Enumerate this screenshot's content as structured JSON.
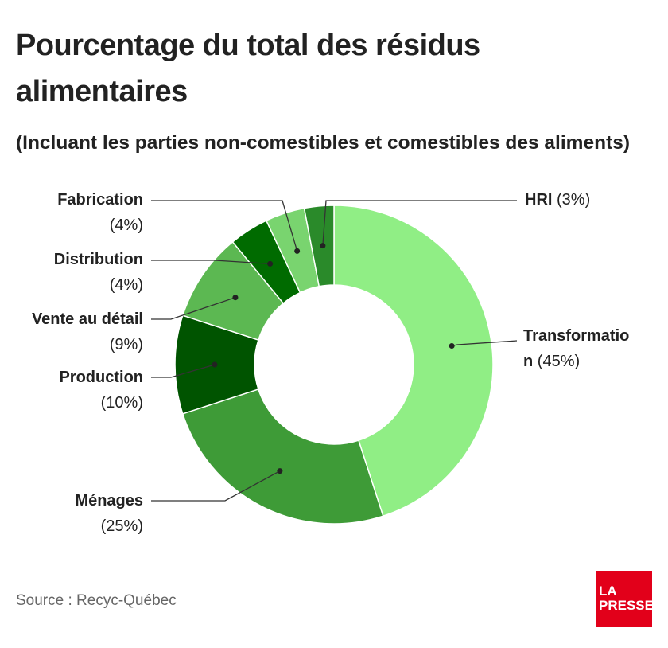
{
  "title": "Pourcentage du total des résidus alimentaires",
  "subtitle": "(Incluant les parties non-comestibles et comestibles des aliments)",
  "source": "Source : Recyc-Québec",
  "logo": {
    "line1": "LA",
    "line2": "PRESSE",
    "color": "#e2001a"
  },
  "chart_data": {
    "type": "pie",
    "donut": true,
    "title": "Pourcentage du total des résidus alimentaires",
    "subtitle": "(Incluant les parties non-comestibles et comestibles des aliments)",
    "slices": [
      {
        "label": "Transformation",
        "display_name": "Transformatio n",
        "display_pct": "(45%)",
        "value": 45,
        "color": "#90ee85"
      },
      {
        "label": "Ménages",
        "display_name": "Ménages",
        "display_pct": "(25%)",
        "value": 25,
        "color": "#3e9b37"
      },
      {
        "label": "Production",
        "display_name": "Production",
        "display_pct": "(10%)",
        "value": 10,
        "color": "#005400"
      },
      {
        "label": "Vente au détail",
        "display_name": "Vente au détail",
        "display_pct": "(9%)",
        "value": 9,
        "color": "#5cb852"
      },
      {
        "label": "Distribution",
        "display_name": "Distribution",
        "display_pct": "(4%)",
        "value": 4,
        "color": "#006b00"
      },
      {
        "label": "Fabrication",
        "display_name": "Fabrication",
        "display_pct": "(4%)",
        "value": 4,
        "color": "#79d46f"
      },
      {
        "label": "HRI",
        "display_name": "HRI",
        "display_pct": "(3%)",
        "value": 3,
        "color": "#2a8a2a"
      }
    ]
  }
}
